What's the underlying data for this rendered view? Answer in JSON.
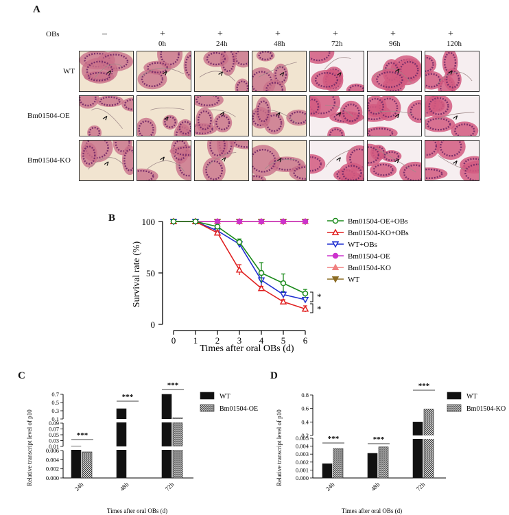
{
  "panels": {
    "a": "A",
    "b": "B",
    "c": "C",
    "d": "D"
  },
  "panel_a": {
    "obs_label": "OBs",
    "signs": [
      "–",
      "+",
      "+",
      "+",
      "+",
      "+",
      "+"
    ],
    "times": [
      "0h",
      "24h",
      "48h",
      "72h",
      "96h",
      "120h"
    ],
    "rows": [
      "WT",
      "Bm01504-OE",
      "Bm01504-KO"
    ]
  },
  "chart_data": [
    {
      "type": "line",
      "title": "",
      "xlabel": "Times after oral OBs (d)",
      "ylabel": "Survival rate (%)",
      "x": [
        0,
        1,
        2,
        3,
        4,
        5,
        6
      ],
      "xlim": [
        0,
        6
      ],
      "ylim": [
        0,
        100
      ],
      "yticks": [
        0,
        50,
        100
      ],
      "series": [
        {
          "name": "Bm01504-OE+OBs",
          "color": "#1a8a1a",
          "marker": "circle-open",
          "values": [
            100,
            100,
            95,
            80,
            50,
            40,
            30
          ],
          "errors": [
            0,
            0,
            2,
            3,
            10,
            9,
            4
          ]
        },
        {
          "name": "Bm01504-KO+OBs",
          "color": "#e02020",
          "marker": "triangle-up-open",
          "values": [
            100,
            100,
            89,
            53,
            35,
            22,
            15
          ],
          "errors": [
            0,
            0,
            2,
            5,
            2,
            2,
            3
          ]
        },
        {
          "name": "WT+OBs",
          "color": "#1f2fd0",
          "marker": "triangle-down-open",
          "values": [
            100,
            100,
            91,
            78,
            43,
            29,
            24
          ],
          "errors": [
            0,
            0,
            2,
            3,
            5,
            3,
            2
          ]
        },
        {
          "name": "Bm01504-OE",
          "color": "#cc33cc",
          "marker": "circle",
          "values": [
            100,
            100,
            100,
            100,
            100,
            100,
            100
          ]
        },
        {
          "name": "Bm01504-KO",
          "color": "#f08080",
          "marker": "triangle-up",
          "values": [
            100,
            100,
            100,
            100,
            100,
            100,
            100
          ]
        },
        {
          "name": "WT",
          "color": "#8b6b22",
          "marker": "triangle-down",
          "values": [
            100,
            100,
            100,
            100,
            100,
            100,
            100
          ]
        }
      ],
      "annotations": [
        "*",
        "*"
      ]
    },
    {
      "type": "bar",
      "title": "",
      "xlabel": "Times after oral OBs (d)",
      "ylabel": "Relative transcript level of p10",
      "categories": [
        "24h",
        "48h",
        "72h"
      ],
      "series": [
        {
          "name": "WT",
          "values": [
            0.011,
            0.35,
            0.7
          ]
        },
        {
          "name": "Bm01504-OE",
          "values": [
            0.0057,
            0.093,
            0.13
          ]
        }
      ],
      "axis_breaks": "broken y-axis: 0–0.006, 0.01–0.09, 0.1–0.7",
      "yticks": [
        "0.000",
        "0.002",
        "0.004",
        "0.006",
        "0.01",
        "0.03",
        "0.05",
        "0.07",
        "0.09",
        "0.1",
        "0.3",
        "0.5",
        "0.7"
      ],
      "significance": [
        "***",
        "***",
        "***"
      ]
    },
    {
      "type": "bar",
      "title": "",
      "xlabel": "Times after oral OBs (d)",
      "ylabel": "Relative transcript level of p10",
      "categories": [
        "24h",
        "48h",
        "72h"
      ],
      "series": [
        {
          "name": "WT",
          "values": [
            0.0018,
            0.0031,
            0.4
          ]
        },
        {
          "name": "Bm01504-KO",
          "values": [
            0.0037,
            0.0039,
            0.59
          ]
        }
      ],
      "axis_breaks": "broken y-axis: 0–0.005, 0.2–0.8",
      "yticks": [
        "0.000",
        "0.001",
        "0.002",
        "0.003",
        "0.004",
        "0.005",
        "0.2",
        "0.4",
        "0.6",
        "0.8"
      ],
      "significance": [
        "***",
        "***",
        "***"
      ]
    }
  ],
  "colors": {
    "he_pink": "#d25a80",
    "he_purple": "#7a2f6a",
    "he_bg": "#f1e4d0",
    "bar_black": "#111111"
  }
}
